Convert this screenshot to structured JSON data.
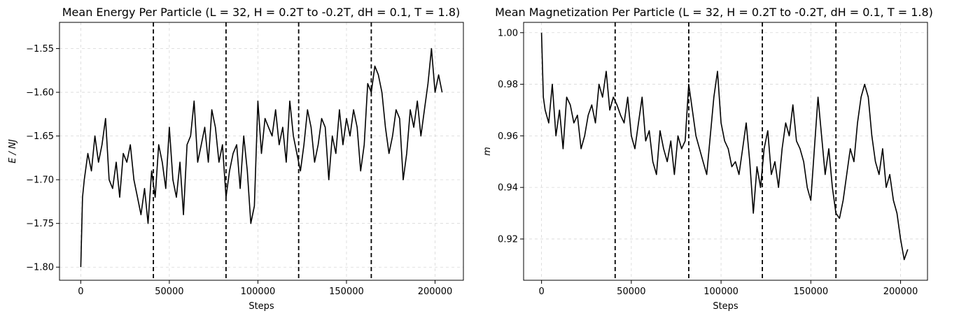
{
  "chart_data": [
    {
      "type": "line",
      "title": "Mean Energy Per Particle (L = 32,  H = 0.2T to -0.2T, dH = 0.1, T = 1.8)",
      "xlabel": "Steps",
      "ylabel": "E / NJ",
      "xlim": [
        -12000,
        216000
      ],
      "ylim": [
        -1.815,
        -1.52
      ],
      "xticks": [
        0,
        50000,
        100000,
        150000,
        200000
      ],
      "yticks": [
        -1.8,
        -1.75,
        -1.7,
        -1.65,
        -1.6,
        -1.55
      ],
      "xtick_labels": [
        "0",
        "50000",
        "100000",
        "150000",
        "200000"
      ],
      "ytick_labels": [
        "−1.80",
        "−1.75",
        "−1.70",
        "−1.65",
        "−1.60",
        "−1.55"
      ],
      "grid": true,
      "vlines": [
        41000,
        82000,
        123000,
        164000
      ],
      "series": [
        {
          "color": "#000000",
          "x": [
            0,
            1000,
            2000,
            4000,
            6000,
            8000,
            10000,
            12000,
            14000,
            16000,
            18000,
            20000,
            22000,
            24000,
            26000,
            28000,
            30000,
            32000,
            34000,
            36000,
            38000,
            40000,
            42000,
            44000,
            46000,
            48000,
            50000,
            52000,
            54000,
            56000,
            58000,
            60000,
            62000,
            64000,
            66000,
            68000,
            70000,
            72000,
            74000,
            76000,
            78000,
            80000,
            82000,
            84000,
            86000,
            88000,
            90000,
            92000,
            94000,
            96000,
            98000,
            100000,
            102000,
            104000,
            106000,
            108000,
            110000,
            112000,
            114000,
            116000,
            118000,
            120000,
            122000,
            124000,
            126000,
            128000,
            130000,
            132000,
            134000,
            136000,
            138000,
            140000,
            142000,
            144000,
            146000,
            148000,
            150000,
            152000,
            154000,
            156000,
            158000,
            160000,
            162000,
            164000,
            166000,
            168000,
            170000,
            172000,
            174000,
            176000,
            178000,
            180000,
            182000,
            184000,
            186000,
            188000,
            190000,
            192000,
            194000,
            196000,
            198000,
            200000,
            202000,
            204000
          ],
          "y": [
            -1.8,
            -1.72,
            -1.7,
            -1.67,
            -1.69,
            -1.65,
            -1.68,
            -1.66,
            -1.63,
            -1.7,
            -1.71,
            -1.68,
            -1.72,
            -1.67,
            -1.68,
            -1.66,
            -1.7,
            -1.72,
            -1.74,
            -1.71,
            -1.75,
            -1.69,
            -1.72,
            -1.66,
            -1.68,
            -1.71,
            -1.64,
            -1.7,
            -1.72,
            -1.68,
            -1.74,
            -1.66,
            -1.65,
            -1.61,
            -1.68,
            -1.66,
            -1.64,
            -1.68,
            -1.62,
            -1.64,
            -1.68,
            -1.66,
            -1.72,
            -1.69,
            -1.67,
            -1.66,
            -1.71,
            -1.65,
            -1.69,
            -1.75,
            -1.73,
            -1.61,
            -1.67,
            -1.63,
            -1.64,
            -1.65,
            -1.62,
            -1.66,
            -1.64,
            -1.68,
            -1.61,
            -1.65,
            -1.67,
            -1.69,
            -1.66,
            -1.62,
            -1.64,
            -1.68,
            -1.66,
            -1.63,
            -1.64,
            -1.7,
            -1.65,
            -1.67,
            -1.62,
            -1.66,
            -1.63,
            -1.65,
            -1.62,
            -1.64,
            -1.69,
            -1.66,
            -1.59,
            -1.6,
            -1.57,
            -1.58,
            -1.6,
            -1.64,
            -1.67,
            -1.65,
            -1.62,
            -1.63,
            -1.7,
            -1.67,
            -1.62,
            -1.64,
            -1.61,
            -1.65,
            -1.62,
            -1.59,
            -1.55,
            -1.6,
            -1.58,
            -1.6
          ]
        }
      ]
    },
    {
      "type": "line",
      "title": "Mean Magnetization Per Particle (L = 32, H = 0.2T to -0.2T, dH = 0.1, T = 1.8)",
      "xlabel": "Steps",
      "ylabel": "m",
      "xlim": [
        -10000,
        215000
      ],
      "ylim": [
        0.904,
        1.004
      ],
      "xticks": [
        0,
        50000,
        100000,
        150000,
        200000
      ],
      "yticks": [
        0.92,
        0.94,
        0.96,
        0.98,
        1.0
      ],
      "xtick_labels": [
        "0",
        "50000",
        "100000",
        "150000",
        "200000"
      ],
      "ytick_labels": [
        "0.92",
        "0.94",
        "0.96",
        "0.98",
        "1.00"
      ],
      "grid": true,
      "vlines": [
        41000,
        82000,
        123000,
        164000
      ],
      "series": [
        {
          "color": "#000000",
          "x": [
            0,
            1000,
            2000,
            4000,
            6000,
            8000,
            10000,
            12000,
            14000,
            16000,
            18000,
            20000,
            22000,
            24000,
            26000,
            28000,
            30000,
            32000,
            34000,
            36000,
            38000,
            40000,
            42000,
            44000,
            46000,
            48000,
            50000,
            52000,
            54000,
            56000,
            58000,
            60000,
            62000,
            64000,
            66000,
            68000,
            70000,
            72000,
            74000,
            76000,
            78000,
            80000,
            82000,
            84000,
            86000,
            88000,
            90000,
            92000,
            94000,
            96000,
            98000,
            100000,
            102000,
            104000,
            106000,
            108000,
            110000,
            112000,
            114000,
            116000,
            118000,
            120000,
            122000,
            124000,
            126000,
            128000,
            130000,
            132000,
            134000,
            136000,
            138000,
            140000,
            142000,
            144000,
            146000,
            148000,
            150000,
            152000,
            154000,
            156000,
            158000,
            160000,
            162000,
            164000,
            166000,
            168000,
            170000,
            172000,
            174000,
            176000,
            178000,
            180000,
            182000,
            184000,
            186000,
            188000,
            190000,
            192000,
            194000,
            196000,
            198000,
            200000,
            202000,
            204000
          ],
          "y": [
            1.0,
            0.975,
            0.97,
            0.965,
            0.98,
            0.96,
            0.97,
            0.955,
            0.975,
            0.972,
            0.965,
            0.968,
            0.955,
            0.96,
            0.968,
            0.972,
            0.965,
            0.98,
            0.975,
            0.985,
            0.97,
            0.975,
            0.972,
            0.968,
            0.965,
            0.975,
            0.96,
            0.955,
            0.965,
            0.975,
            0.958,
            0.962,
            0.95,
            0.945,
            0.962,
            0.955,
            0.95,
            0.958,
            0.945,
            0.96,
            0.955,
            0.958,
            0.98,
            0.97,
            0.96,
            0.955,
            0.95,
            0.945,
            0.96,
            0.975,
            0.985,
            0.965,
            0.958,
            0.955,
            0.948,
            0.95,
            0.945,
            0.955,
            0.965,
            0.95,
            0.93,
            0.948,
            0.94,
            0.955,
            0.962,
            0.945,
            0.95,
            0.94,
            0.955,
            0.965,
            0.96,
            0.972,
            0.958,
            0.955,
            0.95,
            0.94,
            0.935,
            0.955,
            0.975,
            0.96,
            0.945,
            0.955,
            0.94,
            0.93,
            0.928,
            0.935,
            0.945,
            0.955,
            0.95,
            0.965,
            0.975,
            0.98,
            0.975,
            0.96,
            0.95,
            0.945,
            0.955,
            0.94,
            0.945,
            0.935,
            0.93,
            0.92,
            0.912,
            0.916
          ]
        }
      ]
    }
  ]
}
